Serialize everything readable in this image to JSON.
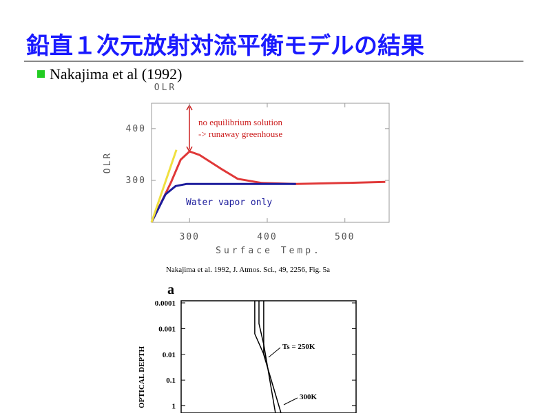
{
  "slide": {
    "title": "鉛直１次元放射対流平衡モデルの結果",
    "bullet": "Nakajima et al (1992)",
    "caption": "Nakajima et al. 1992, J. Atmos. Sci., 49, 2256, Fig. 5a"
  },
  "chart_data": [
    {
      "type": "line",
      "title": "OLR",
      "xlabel": "Surface Temp.",
      "ylabel": "OLR",
      "xlim": [
        251,
        557
      ],
      "ylim": [
        219,
        449
      ],
      "xticks": [
        300,
        400,
        500
      ],
      "yticks": [
        300,
        400
      ],
      "annotations": [
        "no equilibrium solution",
        "-> runaway greenhouse",
        "Water vapor only"
      ],
      "series": [
        {
          "color": "#e03838",
          "x": [
            251,
            276,
            288.5,
            300,
            313,
            340,
            362,
            393,
            437,
            499,
            552
          ],
          "values": [
            219,
            296,
            340,
            356,
            349,
            323,
            303,
            295,
            293,
            295,
            297
          ]
        },
        {
          "color": "#1c1c9c",
          "x": [
            251,
            269,
            282,
            296,
            437
          ],
          "values": [
            219,
            273,
            289,
            293,
            293
          ]
        },
        {
          "color": "#f0e040",
          "x": [
            251,
            283
          ],
          "values": [
            219,
            359
          ]
        }
      ]
    },
    {
      "type": "line",
      "title": "a",
      "ylabel": "OPTICAL DEPTH",
      "yscale": "log",
      "y_inverted": true,
      "xlim": [
        0,
        100
      ],
      "ylim": [
        8.3e-05,
        1.9
      ],
      "yticks": [
        0.0001,
        0.001,
        0.01,
        0.1,
        1
      ],
      "annotations": [
        "Ts = 250K",
        "300K"
      ],
      "series": [
        {
          "color": "#000000",
          "x": [
            42.1,
            42.1,
            48.4
          ],
          "values": [
            8.3e-05,
            0.0016,
            0.0148
          ]
        },
        {
          "color": "#000000",
          "x": [
            44.5,
            44.5,
            47.2,
            53.9
          ],
          "values": [
            8.3e-05,
            0.00064,
            0.0041,
            1.9
          ]
        },
        {
          "color": "#000000",
          "x": [
            47.2,
            47.2,
            57.1
          ],
          "values": [
            8.3e-05,
            0.0102,
            1.9
          ]
        }
      ]
    }
  ]
}
